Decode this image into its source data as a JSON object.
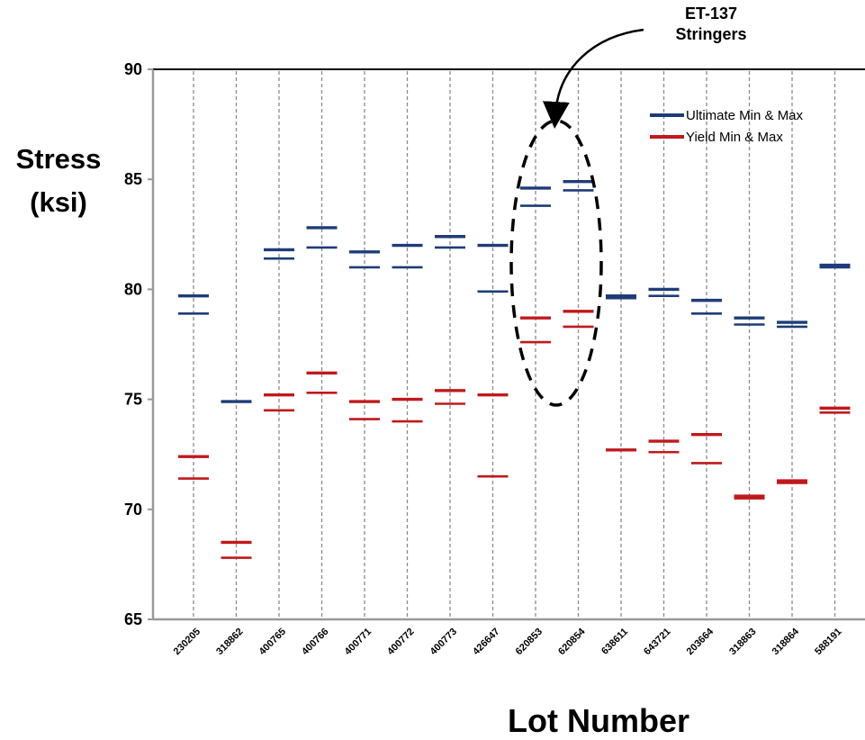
{
  "chart_data": {
    "type": "range-markers",
    "xlabel": "Lot Number",
    "ylabel_line1": "Stress",
    "ylabel_line2": "(ksi)",
    "ylim": [
      65,
      90
    ],
    "yticks": [
      "65",
      "70",
      "75",
      "80",
      "85",
      "90"
    ],
    "ytick_values": [
      65,
      70,
      75,
      80,
      85,
      90
    ],
    "grid": "vertical dashed per lot",
    "legend_placement": "top-right",
    "categories": [
      "230205",
      "318862",
      "400765",
      "400766",
      "400771",
      "400772",
      "400773",
      "426647",
      "620853",
      "620854",
      "638611",
      "643721",
      "203664",
      "318863",
      "318864",
      "588191"
    ],
    "series": [
      {
        "name": "Ultimate Min & Max",
        "color": "#1f3c78",
        "min": [
          78.9,
          74.9,
          81.4,
          81.9,
          81.0,
          81.0,
          81.9,
          79.9,
          83.8,
          84.5,
          79.6,
          79.7,
          78.9,
          78.4,
          78.3,
          81.0
        ],
        "max": [
          79.7,
          74.9,
          81.8,
          82.8,
          81.7,
          82.0,
          82.4,
          82.0,
          84.6,
          84.9,
          79.7,
          80.0,
          79.5,
          78.7,
          78.5,
          81.1
        ]
      },
      {
        "name": "Yield Min & Max",
        "color": "#c0191c",
        "min": [
          71.4,
          67.8,
          74.5,
          75.3,
          74.1,
          74.0,
          74.8,
          71.5,
          77.6,
          78.3,
          72.7,
          72.6,
          72.1,
          70.5,
          71.2,
          74.4
        ],
        "max": [
          72.4,
          68.5,
          75.2,
          76.2,
          74.9,
          75.0,
          75.4,
          75.2,
          78.7,
          79.0,
          72.7,
          73.1,
          73.4,
          70.6,
          71.3,
          74.6
        ]
      }
    ],
    "annotation": {
      "line1": "ET-137",
      "line2": "Stringers",
      "target_lots": [
        "620853",
        "620854"
      ]
    }
  }
}
